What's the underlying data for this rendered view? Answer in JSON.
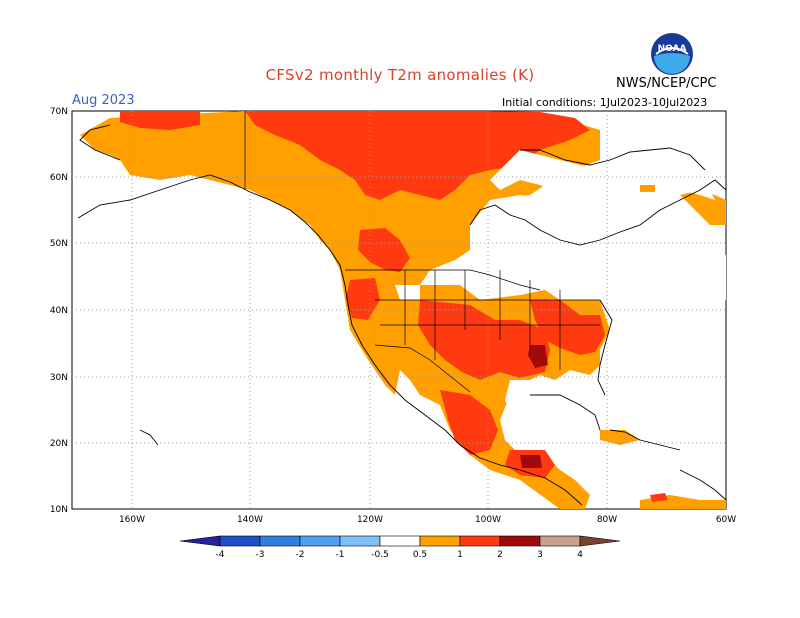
{
  "title": "CFSv2 monthly T2m anomalies (K)",
  "period": "Aug 2023",
  "initial_conditions": "Initial conditions: 1Jul2023-10Jul2023",
  "agency": "NWS/NCEP/CPC",
  "logo_text": "NOAA",
  "lat_labels": [
    "70N",
    "60N",
    "50N",
    "40N",
    "30N",
    "20N",
    "10N"
  ],
  "lon_labels": [
    "160W",
    "140W",
    "120W",
    "100W",
    "80W",
    "60W"
  ],
  "colorbar": {
    "labels": [
      "-4",
      "-3",
      "-2",
      "-1",
      "-0.5",
      "0.5",
      "1",
      "2",
      "3",
      "4"
    ],
    "colors": [
      "#2a1fa0",
      "#1f4fc8",
      "#2f7fe0",
      "#4fa0f0",
      "#80c0f8",
      "#ffffff",
      "#ffa000",
      "#ff3a10",
      "#a00a0a",
      "#c8a090",
      "#7a4030"
    ]
  }
}
